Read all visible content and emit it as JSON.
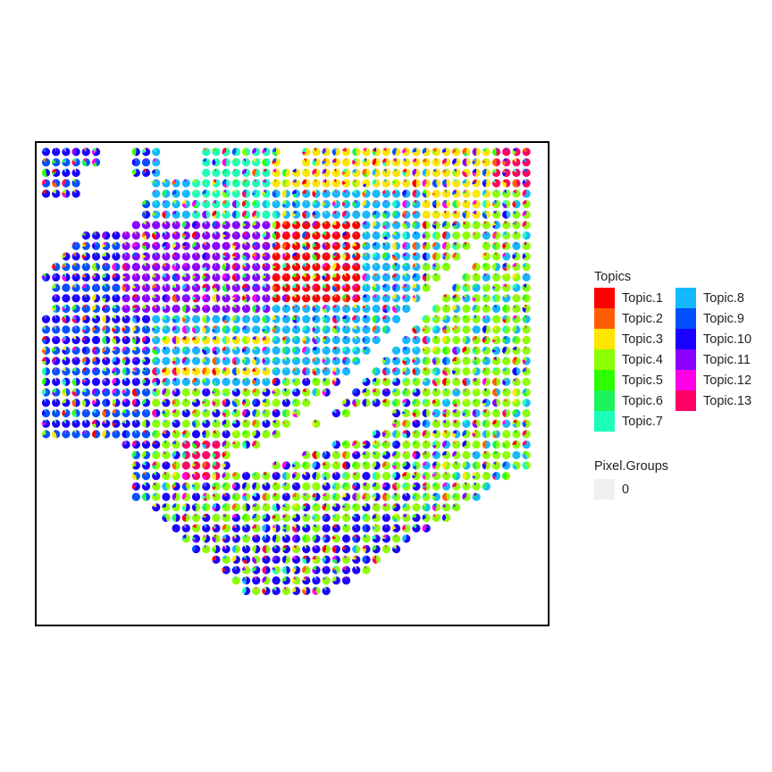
{
  "chart_data": {
    "type": "scatter",
    "mark": "pie-chart spots (spatial transcriptomics deconvolution)",
    "title": "",
    "xlabel": "",
    "ylabel": "",
    "axes_visible": false,
    "grid": false,
    "legend_position": "right",
    "spot_grid": {
      "columns": 49,
      "rows": 45
    },
    "tissue_regions_description": "tissue spots fill most of the panel except the top-left corner, small top gaps, a curved gap cutting diagonally through the middle-right, and the bottom corners",
    "dominant_topic_regions": [
      {
        "topic": "Topic.1",
        "region": "upper centre block"
      },
      {
        "topic": "Topic.3",
        "region": "top band and left-centre patches"
      },
      {
        "topic": "Topic.7",
        "region": "top-centre band"
      },
      {
        "topic": "Topic.11",
        "region": "upper-left block"
      },
      {
        "topic": "Topic.13",
        "region": "top-right corner and small lower-left patch"
      },
      {
        "topic": "Topic.4",
        "region": "right side and lower-centre"
      },
      {
        "topic": "Topic.10",
        "region": "bottom and left edges"
      },
      {
        "topic": "Topic.8",
        "region": "curved band along the gap"
      }
    ],
    "topics_legend": {
      "title": "Topics",
      "entries": [
        {
          "name": "Topic.1",
          "color": "#FF0000"
        },
        {
          "name": "Topic.2",
          "color": "#FF5E00"
        },
        {
          "name": "Topic.3",
          "color": "#FFE600"
        },
        {
          "name": "Topic.4",
          "color": "#8CFF00"
        },
        {
          "name": "Topic.5",
          "color": "#2DFF00"
        },
        {
          "name": "Topic.6",
          "color": "#1CF25A"
        },
        {
          "name": "Topic.7",
          "color": "#1CFFB8"
        },
        {
          "name": "Topic.8",
          "color": "#14B8FF"
        },
        {
          "name": "Topic.9",
          "color": "#0050FF"
        },
        {
          "name": "Topic.10",
          "color": "#1A00FF"
        },
        {
          "name": "Topic.11",
          "color": "#8A00FF"
        },
        {
          "name": "Topic.12",
          "color": "#FF00E6"
        },
        {
          "name": "Topic.13",
          "color": "#FF0066"
        }
      ]
    },
    "pixel_groups_legend": {
      "title": "Pixel.Groups",
      "entries": [
        {
          "label": "0",
          "color": "#EFEFEF"
        }
      ]
    }
  }
}
